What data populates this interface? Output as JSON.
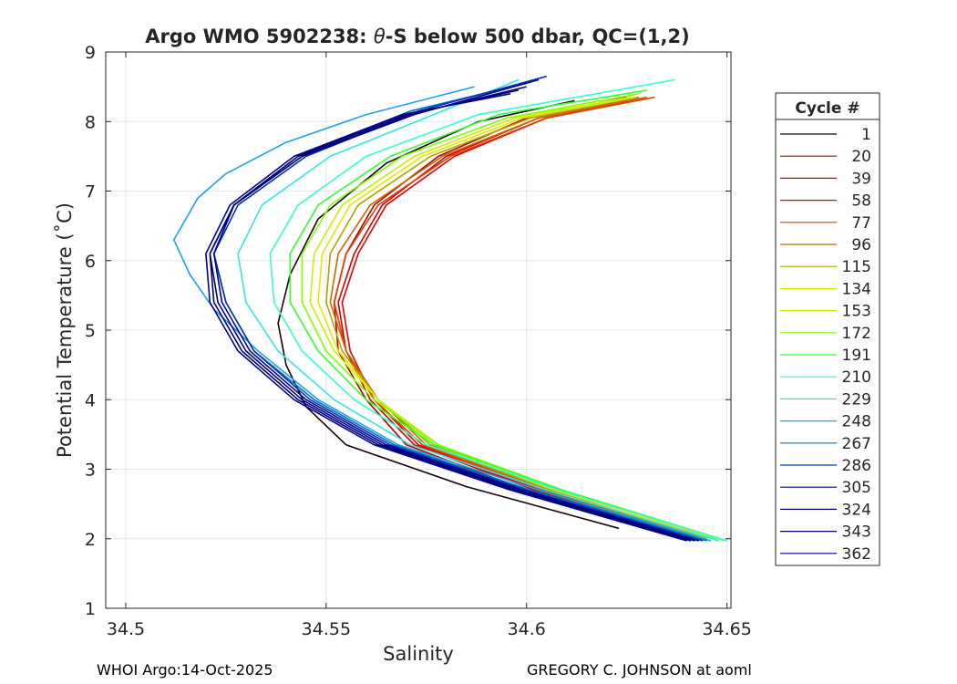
{
  "chart_data": {
    "type": "line",
    "title_prefix": "Argo WMO 5902238: ",
    "title_theta": "θ",
    "title_suffix": "-S below 500 dbar,  QC=(1,2)",
    "xlabel": "Salinity",
    "ylabel": "Potential Temperature (˚C)",
    "xlim": [
      34.495,
      34.651
    ],
    "ylim": [
      1,
      9
    ],
    "xticks": [
      34.5,
      34.55,
      34.6,
      34.65
    ],
    "xtick_labels": [
      "34.5",
      "34.55",
      "34.6",
      "34.65"
    ],
    "yticks": [
      1,
      2,
      3,
      4,
      5,
      6,
      7,
      8,
      9
    ],
    "ytick_labels": [
      "1",
      "2",
      "3",
      "4",
      "5",
      "6",
      "7",
      "8",
      "9"
    ],
    "grid": true,
    "legend_title": "Cycle #",
    "legend_position": "right-outside",
    "series": [
      {
        "name": "1",
        "color": "#1a0000",
        "points": [
          [
            34.623,
            2.15
          ],
          [
            34.585,
            2.75
          ],
          [
            34.555,
            3.35
          ],
          [
            34.545,
            3.9
          ],
          [
            34.54,
            4.5
          ],
          [
            34.538,
            5.1
          ],
          [
            34.541,
            5.8
          ],
          [
            34.548,
            6.6
          ],
          [
            34.565,
            7.4
          ],
          [
            34.588,
            8.0
          ],
          [
            34.612,
            8.3
          ]
        ]
      },
      {
        "name": "20",
        "color": "#b30000",
        "points": [
          [
            34.64,
            2.0
          ],
          [
            34.6,
            2.7
          ],
          [
            34.57,
            3.35
          ],
          [
            34.56,
            4.0
          ],
          [
            34.553,
            4.7
          ],
          [
            34.552,
            5.4
          ],
          [
            34.555,
            6.1
          ],
          [
            34.562,
            6.8
          ],
          [
            34.578,
            7.5
          ],
          [
            34.6,
            8.05
          ],
          [
            34.625,
            8.35
          ]
        ]
      },
      {
        "name": "39",
        "color": "#cc0000",
        "points": [
          [
            34.641,
            2.0
          ],
          [
            34.602,
            2.7
          ],
          [
            34.572,
            3.35
          ],
          [
            34.561,
            4.0
          ],
          [
            34.555,
            4.7
          ],
          [
            34.553,
            5.4
          ],
          [
            34.557,
            6.1
          ],
          [
            34.564,
            6.8
          ],
          [
            34.58,
            7.5
          ],
          [
            34.603,
            8.05
          ],
          [
            34.628,
            8.35
          ]
        ]
      },
      {
        "name": "58",
        "color": "#e60000",
        "points": [
          [
            34.642,
            2.0
          ],
          [
            34.603,
            2.7
          ],
          [
            34.573,
            3.35
          ],
          [
            34.562,
            4.0
          ],
          [
            34.556,
            4.7
          ],
          [
            34.554,
            5.4
          ],
          [
            34.558,
            6.1
          ],
          [
            34.565,
            6.8
          ],
          [
            34.582,
            7.5
          ],
          [
            34.605,
            8.05
          ],
          [
            34.63,
            8.35
          ]
        ]
      },
      {
        "name": "77",
        "color": "#e63c00",
        "points": [
          [
            34.643,
            2.0
          ],
          [
            34.604,
            2.7
          ],
          [
            34.574,
            3.35
          ],
          [
            34.562,
            4.0
          ],
          [
            34.555,
            4.7
          ],
          [
            34.552,
            5.4
          ],
          [
            34.555,
            6.1
          ],
          [
            34.563,
            6.8
          ],
          [
            34.581,
            7.5
          ],
          [
            34.605,
            8.05
          ],
          [
            34.632,
            8.35
          ]
        ]
      },
      {
        "name": "96",
        "color": "#cc6600",
        "points": [
          [
            34.644,
            2.0
          ],
          [
            34.605,
            2.7
          ],
          [
            34.575,
            3.35
          ],
          [
            34.563,
            4.0
          ],
          [
            34.555,
            4.7
          ],
          [
            34.551,
            5.4
          ],
          [
            34.553,
            6.1
          ],
          [
            34.561,
            6.8
          ],
          [
            34.579,
            7.5
          ],
          [
            34.603,
            8.05
          ],
          [
            34.63,
            8.35
          ]
        ]
      },
      {
        "name": "115",
        "color": "#b3a300",
        "points": [
          [
            34.645,
            2.0
          ],
          [
            34.606,
            2.7
          ],
          [
            34.576,
            3.35
          ],
          [
            34.563,
            4.0
          ],
          [
            34.554,
            4.7
          ],
          [
            34.55,
            5.4
          ],
          [
            34.551,
            6.1
          ],
          [
            34.558,
            6.8
          ],
          [
            34.576,
            7.5
          ],
          [
            34.601,
            8.05
          ],
          [
            34.628,
            8.35
          ]
        ]
      },
      {
        "name": "134",
        "color": "#e6e600",
        "points": [
          [
            34.647,
            2.0
          ],
          [
            34.607,
            2.7
          ],
          [
            34.577,
            3.35
          ],
          [
            34.563,
            4.0
          ],
          [
            34.553,
            4.7
          ],
          [
            34.548,
            5.4
          ],
          [
            34.549,
            6.1
          ],
          [
            34.556,
            6.8
          ],
          [
            34.574,
            7.5
          ],
          [
            34.599,
            8.05
          ],
          [
            34.627,
            8.35
          ]
        ]
      },
      {
        "name": "153",
        "color": "#c8f000",
        "points": [
          [
            34.648,
            2.0
          ],
          [
            34.608,
            2.7
          ],
          [
            34.578,
            3.35
          ],
          [
            34.563,
            4.0
          ],
          [
            34.552,
            4.7
          ],
          [
            34.546,
            5.4
          ],
          [
            34.547,
            6.1
          ],
          [
            34.554,
            6.8
          ],
          [
            34.572,
            7.5
          ],
          [
            34.597,
            8.05
          ],
          [
            34.626,
            8.35
          ]
        ]
      },
      {
        "name": "172",
        "color": "#80ff00",
        "points": [
          [
            34.649,
            1.98
          ],
          [
            34.609,
            2.7
          ],
          [
            34.578,
            3.35
          ],
          [
            34.562,
            4.0
          ],
          [
            34.55,
            4.7
          ],
          [
            34.544,
            5.4
          ],
          [
            34.544,
            6.1
          ],
          [
            34.551,
            6.8
          ],
          [
            34.569,
            7.5
          ],
          [
            34.595,
            8.05
          ],
          [
            34.628,
            8.4
          ]
        ]
      },
      {
        "name": "191",
        "color": "#33ff33",
        "points": [
          [
            34.65,
            1.97
          ],
          [
            34.609,
            2.7
          ],
          [
            34.577,
            3.35
          ],
          [
            34.56,
            4.0
          ],
          [
            34.548,
            4.7
          ],
          [
            34.541,
            5.4
          ],
          [
            34.541,
            6.1
          ],
          [
            34.548,
            6.8
          ],
          [
            34.566,
            7.5
          ],
          [
            34.593,
            8.1
          ],
          [
            34.63,
            8.45
          ]
        ]
      },
      {
        "name": "210",
        "color": "#33ffcc",
        "points": [
          [
            34.65,
            1.97
          ],
          [
            34.608,
            2.7
          ],
          [
            34.575,
            3.35
          ],
          [
            34.557,
            4.0
          ],
          [
            34.544,
            4.7
          ],
          [
            34.537,
            5.4
          ],
          [
            34.536,
            6.1
          ],
          [
            34.543,
            6.8
          ],
          [
            34.56,
            7.5
          ],
          [
            34.588,
            8.1
          ],
          [
            34.637,
            8.6
          ]
        ]
      },
      {
        "name": "229",
        "color": "#33e6e6",
        "points": [
          [
            34.648,
            1.97
          ],
          [
            34.605,
            2.7
          ],
          [
            34.571,
            3.35
          ],
          [
            34.552,
            4.0
          ],
          [
            34.538,
            4.7
          ],
          [
            34.53,
            5.4
          ],
          [
            34.528,
            6.1
          ],
          [
            34.534,
            6.8
          ],
          [
            34.551,
            7.5
          ],
          [
            34.579,
            8.15
          ],
          [
            34.598,
            8.6
          ]
        ]
      },
      {
        "name": "248",
        "color": "#1aa3e6",
        "points": [
          [
            34.646,
            1.97
          ],
          [
            34.603,
            2.7
          ],
          [
            34.568,
            3.35
          ],
          [
            34.548,
            4.0
          ],
          [
            34.533,
            4.7
          ],
          [
            34.522,
            5.3
          ],
          [
            34.516,
            5.8
          ],
          [
            34.512,
            6.3
          ],
          [
            34.518,
            6.9
          ],
          [
            34.525,
            7.25
          ],
          [
            34.54,
            7.7
          ],
          [
            34.56,
            8.1
          ],
          [
            34.587,
            8.5
          ]
        ]
      },
      {
        "name": "267",
        "color": "#0070cc",
        "points": [
          [
            34.645,
            1.97
          ],
          [
            34.601,
            2.7
          ],
          [
            34.567,
            3.35
          ],
          [
            34.547,
            4.0
          ],
          [
            34.532,
            4.7
          ],
          [
            34.525,
            5.4
          ],
          [
            34.522,
            6.1
          ],
          [
            34.527,
            6.8
          ],
          [
            34.543,
            7.5
          ],
          [
            34.571,
            8.15
          ],
          [
            34.6,
            8.55
          ]
        ]
      },
      {
        "name": "286",
        "color": "#0033b3",
        "points": [
          [
            34.644,
            1.97
          ],
          [
            34.6,
            2.7
          ],
          [
            34.566,
            3.35
          ],
          [
            34.546,
            4.0
          ],
          [
            34.532,
            4.7
          ],
          [
            34.525,
            5.4
          ],
          [
            34.522,
            6.1
          ],
          [
            34.528,
            6.8
          ],
          [
            34.545,
            7.5
          ],
          [
            34.573,
            8.15
          ],
          [
            34.605,
            8.65
          ]
        ]
      },
      {
        "name": "305",
        "color": "#000099",
        "points": [
          [
            34.643,
            1.97
          ],
          [
            34.599,
            2.7
          ],
          [
            34.565,
            3.35
          ],
          [
            34.545,
            4.0
          ],
          [
            34.531,
            4.7
          ],
          [
            34.524,
            5.4
          ],
          [
            34.522,
            6.1
          ],
          [
            34.527,
            6.8
          ],
          [
            34.544,
            7.5
          ],
          [
            34.572,
            8.1
          ],
          [
            34.603,
            8.6
          ]
        ]
      },
      {
        "name": "324",
        "color": "#000080",
        "points": [
          [
            34.642,
            1.97
          ],
          [
            34.598,
            2.7
          ],
          [
            34.564,
            3.35
          ],
          [
            34.544,
            4.0
          ],
          [
            34.53,
            4.7
          ],
          [
            34.523,
            5.4
          ],
          [
            34.521,
            6.1
          ],
          [
            34.527,
            6.8
          ],
          [
            34.544,
            7.5
          ],
          [
            34.571,
            8.1
          ],
          [
            34.6,
            8.5
          ]
        ]
      },
      {
        "name": "343",
        "color": "#000066",
        "points": [
          [
            34.641,
            1.97
          ],
          [
            34.597,
            2.7
          ],
          [
            34.563,
            3.35
          ],
          [
            34.543,
            4.0
          ],
          [
            34.529,
            4.7
          ],
          [
            34.522,
            5.4
          ],
          [
            34.521,
            6.1
          ],
          [
            34.527,
            6.8
          ],
          [
            34.543,
            7.5
          ],
          [
            34.57,
            8.1
          ],
          [
            34.598,
            8.45
          ]
        ]
      },
      {
        "name": "362",
        "color": "#000099",
        "points": [
          [
            34.64,
            1.97
          ],
          [
            34.596,
            2.7
          ],
          [
            34.562,
            3.35
          ],
          [
            34.542,
            4.0
          ],
          [
            34.528,
            4.7
          ],
          [
            34.521,
            5.4
          ],
          [
            34.52,
            6.1
          ],
          [
            34.526,
            6.8
          ],
          [
            34.542,
            7.5
          ],
          [
            34.569,
            8.1
          ],
          [
            34.596,
            8.4
          ]
        ]
      }
    ]
  },
  "footer": {
    "left": "WHOI Argo:14-Oct-2025",
    "right": "GREGORY C. JOHNSON at aoml"
  }
}
